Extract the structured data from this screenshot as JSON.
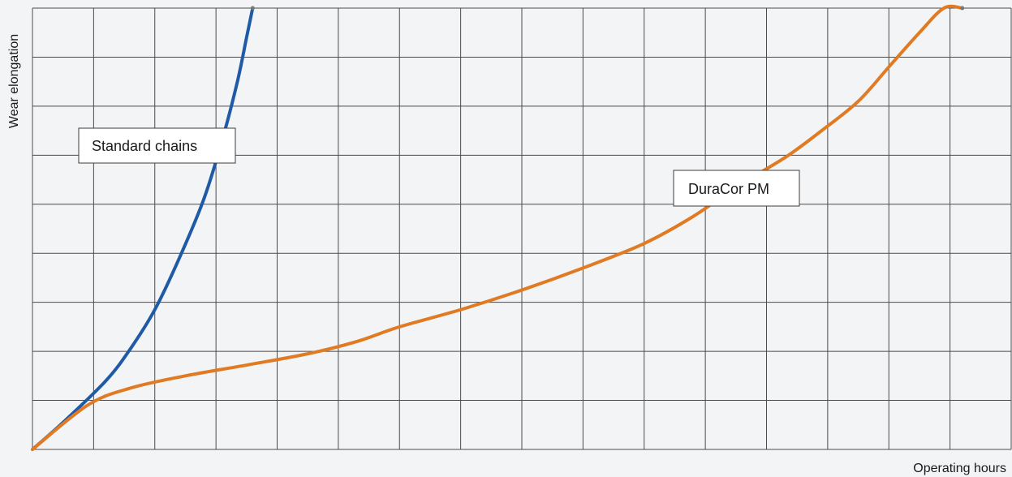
{
  "chart_data": {
    "type": "line",
    "xlabel": "Operating hours",
    "ylabel": "Wear elongation",
    "xlim": [
      0,
      16
    ],
    "ylim": [
      0,
      9
    ],
    "grid": true,
    "series": [
      {
        "name": "Standard chains",
        "color": "#1f5aa6",
        "x": [
          0,
          0.5,
          1.2,
          1.6,
          2.0,
          2.4,
          2.8,
          3.1,
          3.35,
          3.5,
          3.6
        ],
        "y": [
          0,
          0.55,
          1.4,
          2.05,
          2.85,
          3.9,
          5.1,
          6.3,
          7.5,
          8.4,
          9.0
        ]
      },
      {
        "name": "DuraCor PM",
        "color": "#e07b24",
        "x": [
          0,
          0.9,
          1.6,
          2.5,
          3.5,
          4.5,
          5.3,
          6.0,
          7.0,
          8.0,
          9.0,
          10.0,
          10.8,
          11.5,
          12.3,
          12.9,
          13.5,
          14.0,
          14.5,
          14.9,
          15.2
        ],
        "y": [
          0,
          0.9,
          1.25,
          1.5,
          1.72,
          1.95,
          2.2,
          2.5,
          2.85,
          3.25,
          3.7,
          4.2,
          4.75,
          5.35,
          5.95,
          6.5,
          7.1,
          7.8,
          8.5,
          9.0,
          9.0
        ]
      }
    ]
  }
}
